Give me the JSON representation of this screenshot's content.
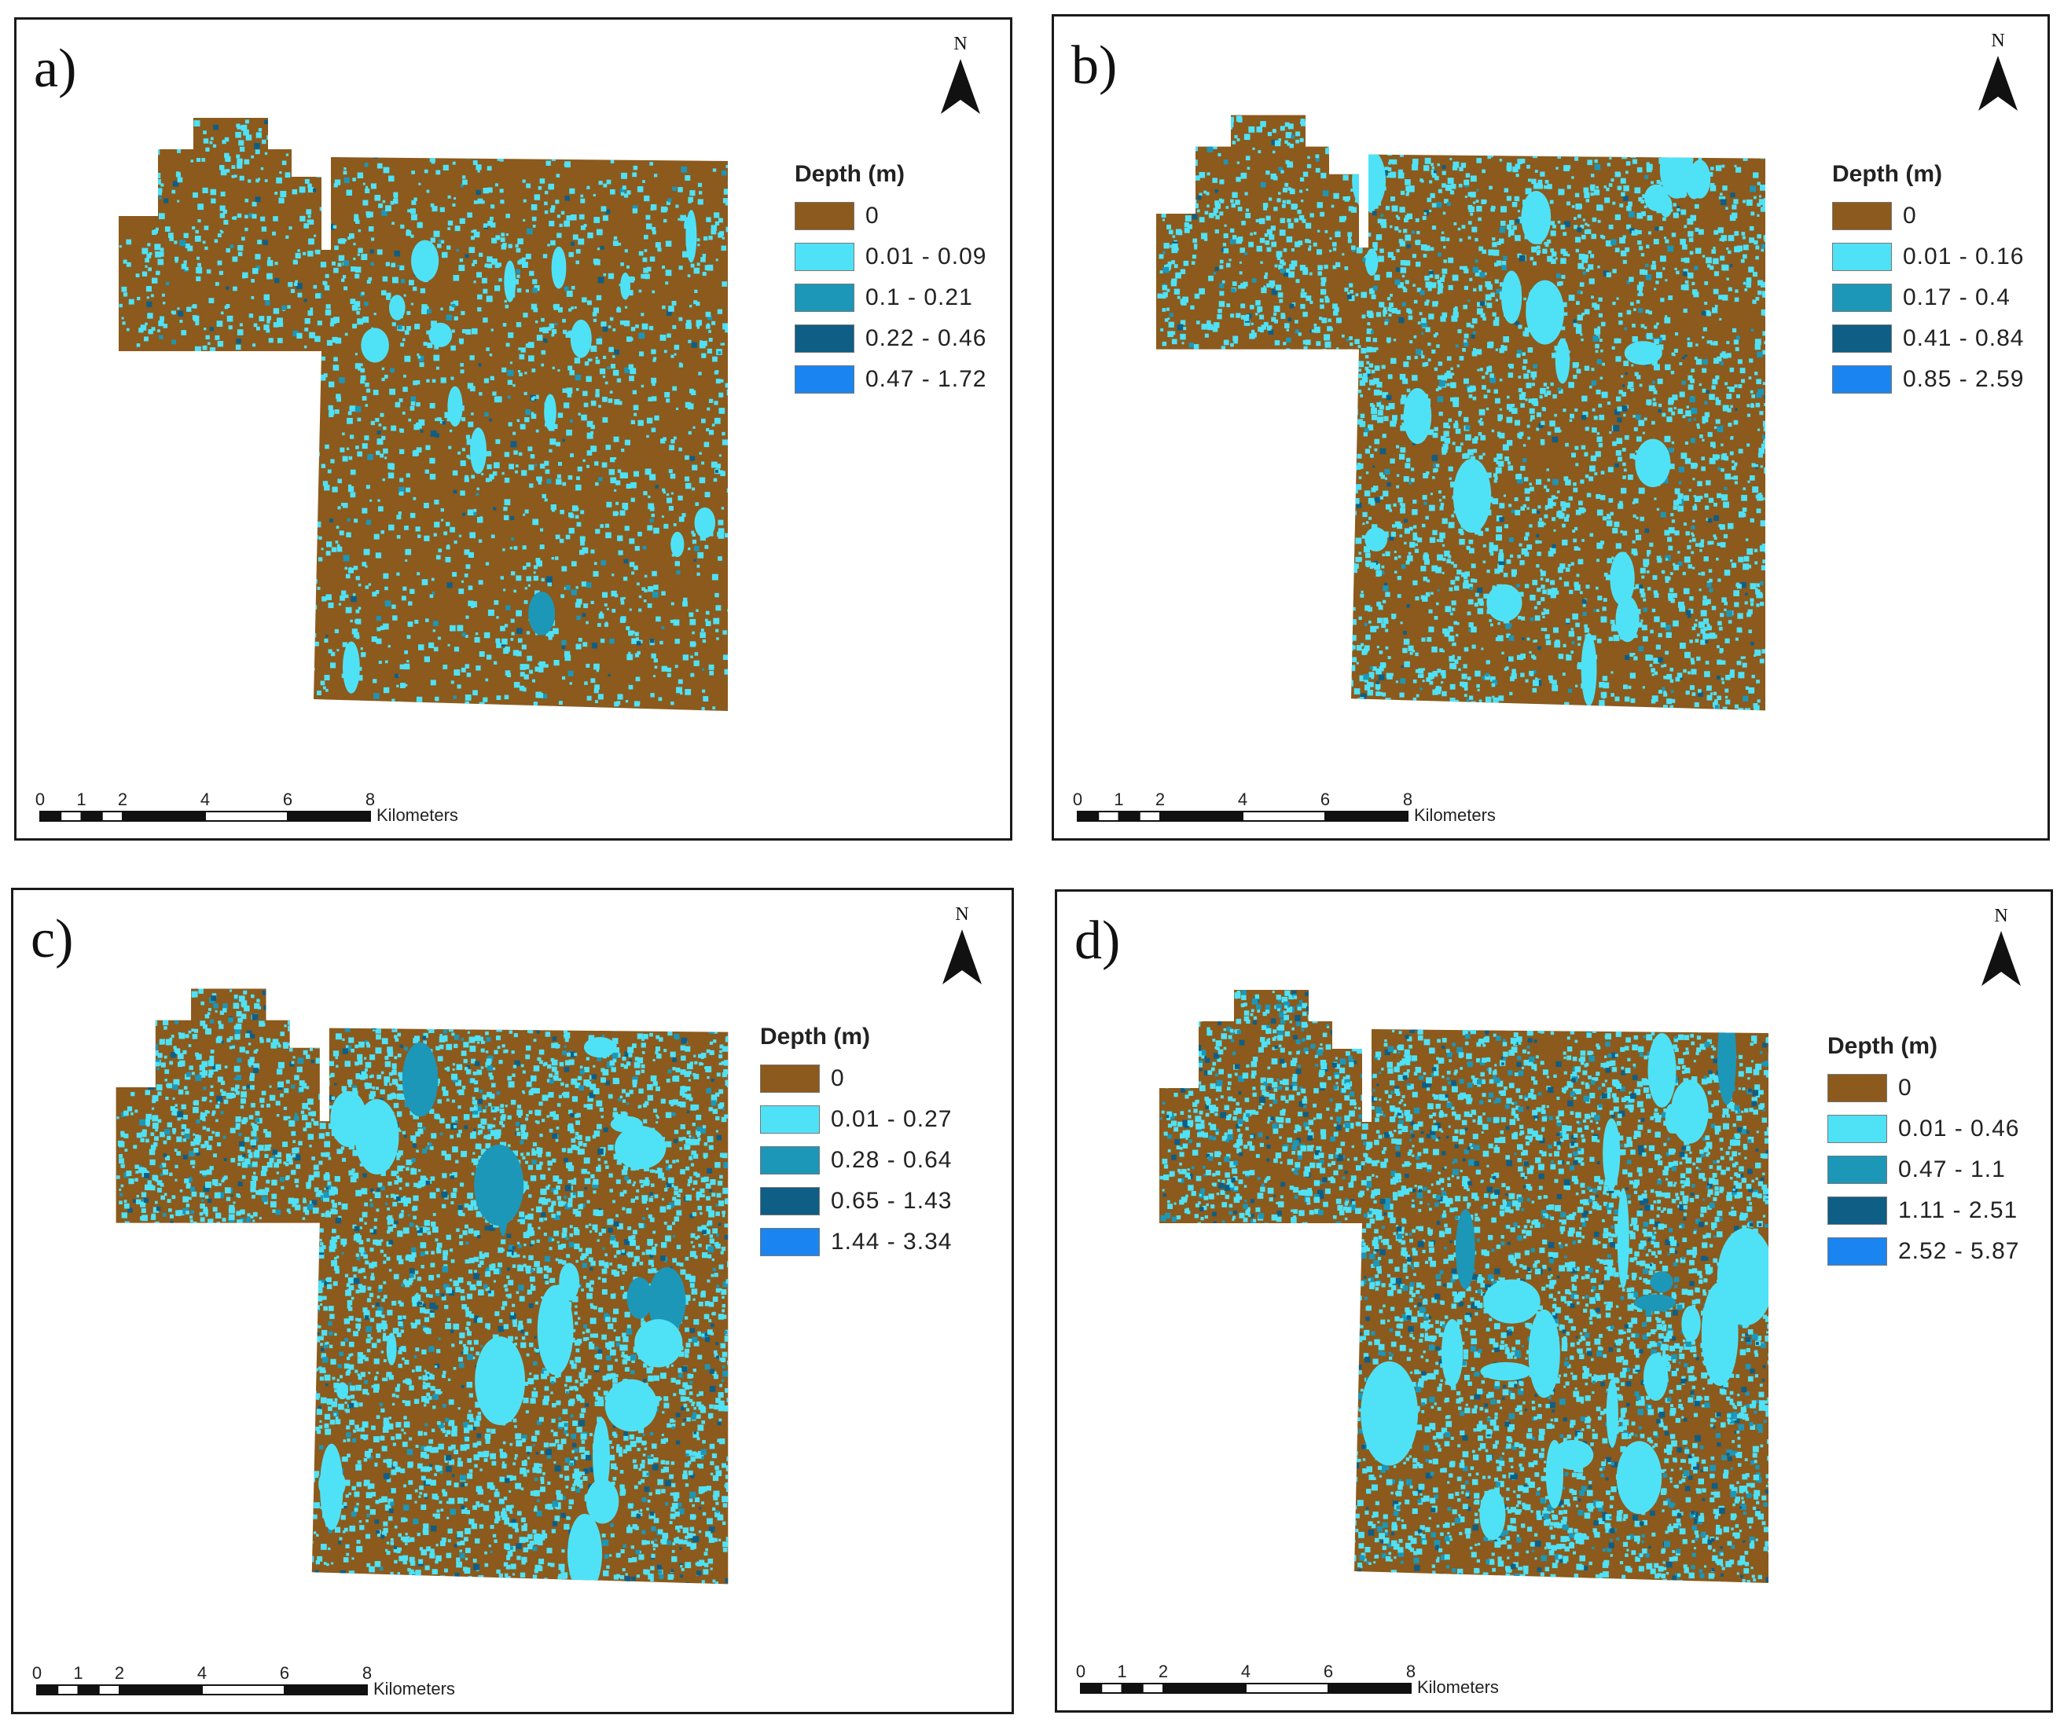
{
  "colors": {
    "dry": "#8b5a1c",
    "class1": "#4fe2f7",
    "class2": "#1c97b8",
    "class3": "#0e5e86",
    "class4": "#1a85f0"
  },
  "legend_title": "Depth (m)",
  "north_label": "N",
  "scale": {
    "ticks": [
      "0",
      "1",
      "2",
      "4",
      "6",
      "8"
    ],
    "unit": "Kilometers"
  },
  "panels": [
    {
      "id": "a",
      "label": "a)",
      "legend": [
        "0",
        "0.01 - 0.09",
        "0.1 - 0.21",
        "0.22 - 0.46",
        "0.47 - 1.72"
      ],
      "water_fraction": 0.1,
      "deep_fraction": 0.03
    },
    {
      "id": "b",
      "label": "b)",
      "legend": [
        "0",
        "0.01 - 0.16",
        "0.17 - 0.4",
        "0.41 - 0.84",
        "0.85 - 2.59"
      ],
      "water_fraction": 0.16,
      "deep_fraction": 0.04
    },
    {
      "id": "c",
      "label": "c)",
      "legend": [
        "0",
        "0.01 - 0.27",
        "0.28 - 0.64",
        "0.65 - 1.43",
        "1.44 - 3.34"
      ],
      "water_fraction": 0.22,
      "deep_fraction": 0.06
    },
    {
      "id": "d",
      "label": "d)",
      "legend": [
        "0",
        "0.01 - 0.46",
        "0.47 - 1.1",
        "1.11 - 2.51",
        "2.52 - 5.87"
      ],
      "water_fraction": 0.24,
      "deep_fraction": 0.1
    }
  ]
}
